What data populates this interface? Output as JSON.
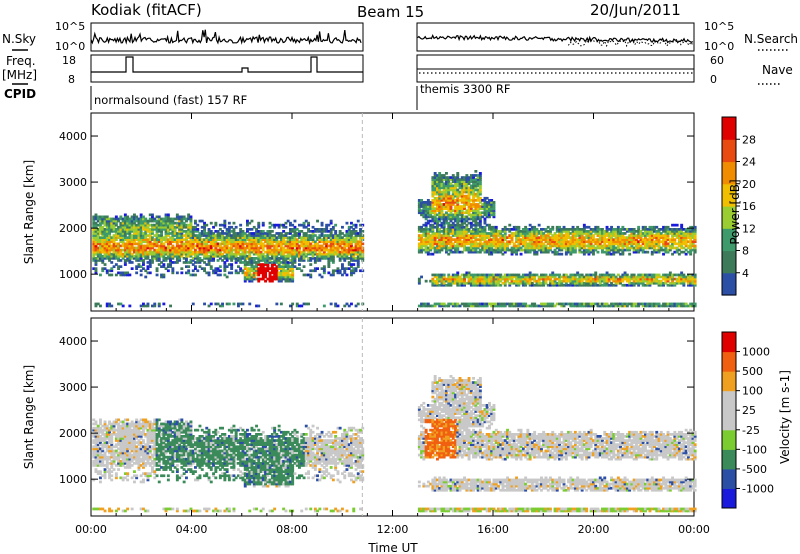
{
  "header": {
    "station": "Kodiak (fitACF)",
    "beam": "Beam 15",
    "date": "20/Jun/2011"
  },
  "left_labels": {
    "nsky": "N.Sky",
    "freq_line1": "Freq.",
    "freq_line2": "[MHz]",
    "cpid": "CPID"
  },
  "right_labels": {
    "nsearch": "N.Search",
    "nave": "Nave"
  },
  "nsky_ticks": [
    "10^5",
    "10^0"
  ],
  "nsearch_ticks": [
    "10^5",
    "10^0"
  ],
  "freq_ticks": [
    "18",
    "8"
  ],
  "nave_ticks": [
    "60",
    "0"
  ],
  "cpid_segments": [
    "normalsound (fast) 157 RF",
    "themis 3300 RF"
  ],
  "colors": {
    "power_scale": [
      "#1a1adc",
      "#2c4fa6",
      "#3c7a5a",
      "#3e9a6a",
      "#9acd32",
      "#f0c000",
      "#f08c00",
      "#e84a10",
      "#e00000"
    ],
    "velocity_scale": [
      "#1a1adc",
      "#2c4fa6",
      "#3a8a5a",
      "#7acc30",
      "#c8c8c8",
      "#c8c8c8",
      "#f0a020",
      "#f06010",
      "#e00000"
    ]
  },
  "chart_data": [
    {
      "type": "heatmap",
      "title": "Power",
      "ylabel": "Slant Range [km]",
      "xlabel": "Time UT",
      "x_ticks": [
        "00:00",
        "04:00",
        "08:00",
        "12:00",
        "16:00",
        "20:00",
        "00:00"
      ],
      "y_ticks": [
        "1000",
        "2000",
        "3000",
        "4000"
      ],
      "ylim": [
        200,
        4500
      ],
      "colorbar_label": "Power [dB]",
      "colorbar_ticks": [
        "4",
        "8",
        "12",
        "16",
        "20",
        "24",
        "28"
      ],
      "data_gap_hours": [
        10.8,
        13.0
      ]
    },
    {
      "type": "heatmap",
      "title": "Velocity",
      "ylabel": "Slant Range [km]",
      "xlabel": "Time UT",
      "x_ticks": [
        "00:00",
        "04:00",
        "08:00",
        "12:00",
        "16:00",
        "20:00",
        "00:00"
      ],
      "y_ticks": [
        "1000",
        "2000",
        "3000",
        "4000"
      ],
      "ylim": [
        200,
        4500
      ],
      "colorbar_label": "Velocity [m s-1]",
      "colorbar_ticks": [
        "1000",
        "500",
        "100",
        "25",
        "-25",
        "-100",
        "-500",
        "-1000"
      ],
      "data_gap_hours": [
        10.8,
        13.0
      ]
    }
  ]
}
